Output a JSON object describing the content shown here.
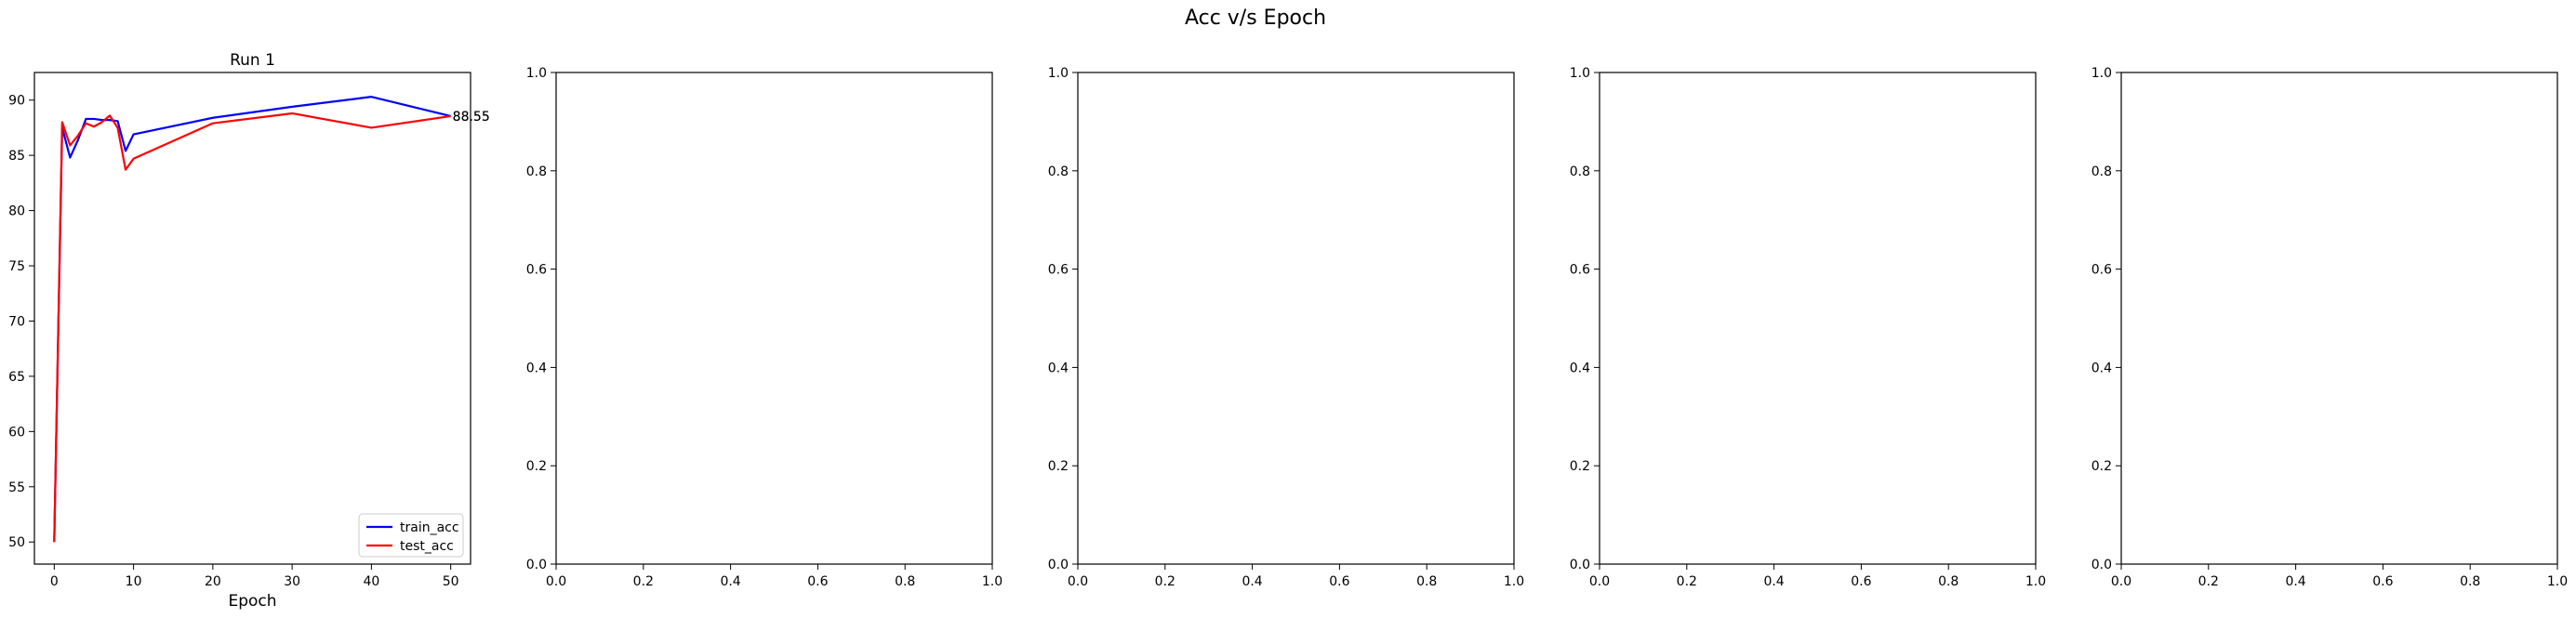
{
  "figure": {
    "suptitle": "Acc v/s Epoch"
  },
  "chart_data": [
    {
      "type": "line",
      "title": "Run 1",
      "xlabel": "Epoch",
      "ylabel": "",
      "xlim": [
        -2.5,
        52.5
      ],
      "ylim": [
        48.0,
        92.5
      ],
      "xticks": [
        0,
        10,
        20,
        30,
        40,
        50
      ],
      "yticks": [
        50,
        55,
        60,
        65,
        70,
        75,
        80,
        85,
        90
      ],
      "grid": false,
      "legend": "lower right",
      "series": [
        {
          "name": "train_acc",
          "color": "#0000ff",
          "x": [
            0,
            1,
            2,
            3,
            4,
            5,
            6,
            7,
            8,
            9,
            10,
            20,
            30,
            40,
            50
          ],
          "y": [
            50.0,
            87.5,
            84.8,
            86.4,
            88.3,
            88.3,
            88.2,
            88.2,
            88.1,
            85.4,
            86.9,
            88.4,
            89.4,
            90.3,
            88.55
          ]
        },
        {
          "name": "test_acc",
          "color": "#ff0000",
          "x": [
            0,
            1,
            2,
            3,
            4,
            5,
            6,
            7,
            8,
            9,
            10,
            20,
            30,
            40,
            50
          ],
          "y": [
            50.0,
            88.0,
            85.9,
            86.8,
            87.9,
            87.6,
            88.0,
            88.6,
            87.5,
            83.7,
            84.7,
            87.9,
            88.8,
            87.5,
            88.55
          ]
        }
      ],
      "end_labels": [
        "88.55",
        "88.55"
      ]
    },
    {
      "type": "line",
      "title": "",
      "xlabel": "",
      "ylabel": "",
      "xlim": [
        0,
        1
      ],
      "ylim": [
        0,
        1
      ],
      "xticks": [
        0.0,
        0.2,
        0.4,
        0.6,
        0.8,
        1.0
      ],
      "yticks": [
        0.0,
        0.2,
        0.4,
        0.6,
        0.8,
        1.0
      ],
      "series": []
    },
    {
      "type": "line",
      "title": "",
      "xlabel": "",
      "ylabel": "",
      "xlim": [
        0,
        1
      ],
      "ylim": [
        0,
        1
      ],
      "xticks": [
        0.0,
        0.2,
        0.4,
        0.6,
        0.8,
        1.0
      ],
      "yticks": [
        0.0,
        0.2,
        0.4,
        0.6,
        0.8,
        1.0
      ],
      "series": []
    },
    {
      "type": "line",
      "title": "",
      "xlabel": "",
      "ylabel": "",
      "xlim": [
        0,
        1
      ],
      "ylim": [
        0,
        1
      ],
      "xticks": [
        0.0,
        0.2,
        0.4,
        0.6,
        0.8,
        1.0
      ],
      "yticks": [
        0.0,
        0.2,
        0.4,
        0.6,
        0.8,
        1.0
      ],
      "series": []
    },
    {
      "type": "line",
      "title": "",
      "xlabel": "",
      "ylabel": "",
      "xlim": [
        0,
        1
      ],
      "ylim": [
        0,
        1
      ],
      "xticks": [
        0.0,
        0.2,
        0.4,
        0.6,
        0.8,
        1.0
      ],
      "yticks": [
        0.0,
        0.2,
        0.4,
        0.6,
        0.8,
        1.0
      ],
      "series": []
    }
  ]
}
